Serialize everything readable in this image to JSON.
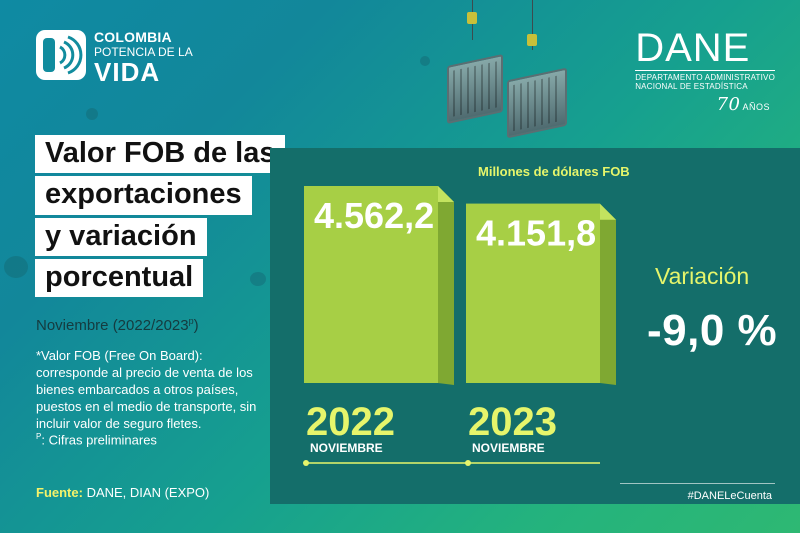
{
  "brand": {
    "left_logo_line1": "COLOMBIA",
    "left_logo_line2": "POTENCIA DE LA",
    "left_logo_line3": "VIDA",
    "dane_word": "DANE",
    "dane_sub1": "DEPARTAMENTO ADMINISTRATIVO",
    "dane_sub2": "NACIONAL DE ESTADÍSTICA",
    "anniversary_number": "70",
    "anniversary_word": "AÑOS"
  },
  "title_lines": [
    "Valor FOB de las",
    "exportaciones",
    "y variación",
    "porcentual"
  ],
  "period_label": "Noviembre (2022/2023",
  "period_superscript": "p",
  "period_close": ")",
  "note_text": "*Valor FOB (Free On Board): corresponde al precio de venta de los bienes embarcados a otros países, puestos en el medio de transporte, sin incluir valor de seguro fletes.",
  "prelim_mark": "P",
  "prelim_text": ": Cifras preliminares",
  "source_label": "Fuente:",
  "source_text": " DANE, DIAN (EXPO)",
  "variation_label": "Variación",
  "variation_value": "-9,0 %",
  "hashtag": "#DANELeCuenta",
  "colors": {
    "background_start": "#0f8aa3",
    "background_end": "#2eb873",
    "panel": "#146e6a",
    "bar": "#a7cf45",
    "accent_yellow": "#e6f56b"
  },
  "chart_data": {
    "type": "bar",
    "unit_label": "Millones de dólares FOB",
    "categories": [
      "2022",
      "2023"
    ],
    "category_sublabels": [
      "NOVIEMBRE",
      "NOVIEMBRE"
    ],
    "values": [
      4562.2,
      4151.8
    ],
    "value_labels": [
      "4.562,2",
      "4.151,8"
    ],
    "ylim": [
      0,
      4562.2
    ],
    "grid": false,
    "legend": "none"
  }
}
